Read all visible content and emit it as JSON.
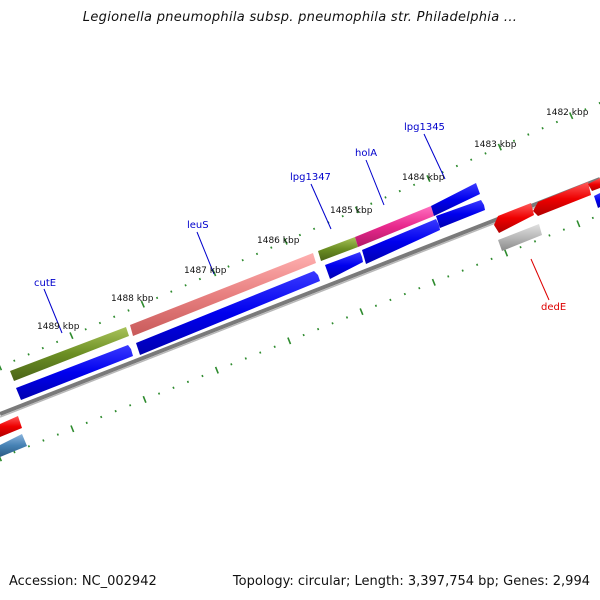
{
  "header": {
    "title": "Legionella pneumophila subsp. pneumophila str. Philadelphia ..."
  },
  "footer": {
    "accession": "Accession: NC_002942",
    "topology": "Topology: circular; Length: 3,397,754 bp; Genes: 2,994"
  },
  "map": {
    "ruler_labels": [
      "1489 kbp",
      "1488 kbp",
      "1487 kbp",
      "1486 kbp",
      "1485 kbp",
      "1484 kbp",
      "1483 kbp",
      "1482 kbp"
    ],
    "gene_labels": [
      {
        "name": "cutE",
        "color": "#0000cc"
      },
      {
        "name": "leuS",
        "color": "#0000cc"
      },
      {
        "name": "lpg1347",
        "color": "#0000cc"
      },
      {
        "name": "holA",
        "color": "#0000cc"
      },
      {
        "name": "lpg1345",
        "color": "#0000cc"
      },
      {
        "name": "dedE",
        "color": "#dd0000"
      }
    ],
    "colors": {
      "ruler_dots": "#2e8b2e",
      "backbone": "#808080",
      "feature_blue": "#0000ee",
      "feature_olive": "#6b8e23",
      "feature_salmon": "#e88080",
      "feature_pink": "#e8288c",
      "feature_red": "#ee0000",
      "feature_gray": "#b0b0b0",
      "feature_steelblue": "#4682b4"
    }
  }
}
